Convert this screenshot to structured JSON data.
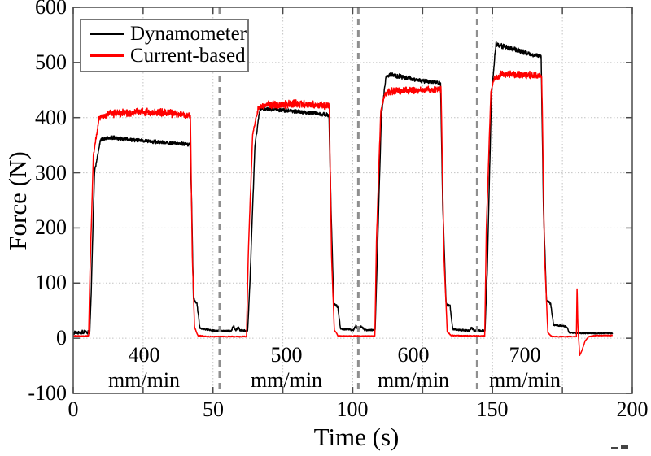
{
  "chart_data": {
    "type": "line",
    "title": "",
    "xlabel": "Time (s)",
    "ylabel": "Force (N)",
    "xlim": [
      0,
      200
    ],
    "ylim": [
      -100,
      600
    ],
    "xticks": [
      0,
      50,
      100,
      150,
      200
    ],
    "yticks": [
      -100,
      0,
      100,
      200,
      300,
      400,
      500,
      600
    ],
    "x_grid_step": 25,
    "grid": "dotted",
    "legend_position": "top-left",
    "separator_lines_x": [
      52.4,
      102,
      144.5
    ],
    "separator_style": {
      "color": "#8f8f8f",
      "dash": "8 6",
      "width": 3
    },
    "annotations": [
      {
        "line1": "400",
        "line2": "mm/min",
        "x": 25.3,
        "y": -38
      },
      {
        "line1": "500",
        "line2": "mm/min",
        "x": 76.3,
        "y": -38
      },
      {
        "line1": "600",
        "line2": "mm/min",
        "x": 121.7,
        "y": -38
      },
      {
        "line1": "700",
        "line2": "mm/min",
        "x": 161.6,
        "y": -38
      }
    ],
    "series": [
      {
        "name": "Dynamometer",
        "color": "#000000",
        "width": 1.5,
        "keypoints_t_value_noise": [
          [
            0,
            11,
            4
          ],
          [
            5.9,
            11,
            4
          ],
          [
            6.3,
            60,
            2
          ],
          [
            7.6,
            300,
            3
          ],
          [
            9.8,
            360,
            4
          ],
          [
            13,
            364,
            4
          ],
          [
            25,
            358,
            4
          ],
          [
            41.8,
            351,
            4
          ],
          [
            42.4,
            240,
            2
          ],
          [
            43.0,
            72,
            3
          ],
          [
            44.3,
            62,
            3
          ],
          [
            45.3,
            18,
            2
          ],
          [
            50,
            14,
            2
          ],
          [
            56.5,
            13,
            2
          ],
          [
            57.3,
            22,
            3
          ],
          [
            58.2,
            15,
            2
          ],
          [
            59,
            20,
            3
          ],
          [
            59.8,
            14,
            2
          ],
          [
            62.4,
            14,
            2
          ],
          [
            63.2,
            100,
            2
          ],
          [
            65,
            350,
            3
          ],
          [
            66.8,
            416,
            4
          ],
          [
            70,
            416,
            4
          ],
          [
            80,
            411,
            4
          ],
          [
            91.5,
            405,
            4
          ],
          [
            92.2,
            240,
            2
          ],
          [
            93.2,
            62,
            3
          ],
          [
            94.6,
            58,
            3
          ],
          [
            95.6,
            18,
            2
          ],
          [
            98,
            16,
            2
          ],
          [
            100.3,
            15,
            2
          ],
          [
            101,
            23,
            3
          ],
          [
            102,
            16,
            2
          ],
          [
            103.2,
            22,
            3
          ],
          [
            104.2,
            15,
            2
          ],
          [
            108,
            15,
            2
          ],
          [
            108.8,
            150,
            2
          ],
          [
            110.2,
            400,
            3
          ],
          [
            111.9,
            477,
            4
          ],
          [
            114,
            477,
            5
          ],
          [
            122,
            469,
            5
          ],
          [
            131.4,
            462,
            4
          ],
          [
            132.2,
            240,
            2
          ],
          [
            133.4,
            62,
            3
          ],
          [
            134.8,
            58,
            3
          ],
          [
            135.8,
            17,
            2
          ],
          [
            138,
            15,
            2
          ],
          [
            141.8,
            14,
            2
          ],
          [
            142.5,
            20,
            3
          ],
          [
            143.4,
            14,
            2
          ],
          [
            147.3,
            14,
            2
          ],
          [
            148.1,
            120,
            2
          ],
          [
            149.6,
            440,
            3
          ],
          [
            151.2,
            533,
            5
          ],
          [
            154,
            529,
            5
          ],
          [
            161,
            519,
            5
          ],
          [
            167.4,
            511,
            5
          ],
          [
            168.2,
            240,
            2
          ],
          [
            169.3,
            68,
            3
          ],
          [
            170.8,
            63,
            3
          ],
          [
            171.8,
            25,
            2
          ],
          [
            174,
            23,
            2
          ],
          [
            176.6,
            21,
            2
          ],
          [
            177.4,
            10,
            1.5
          ],
          [
            183,
            9,
            1.5
          ],
          [
            193,
            9,
            1.5
          ]
        ]
      },
      {
        "name": "Current-based",
        "color": "#ff0000",
        "width": 1.5,
        "keypoints_t_value_noise": [
          [
            0,
            4,
            1
          ],
          [
            5.5,
            4,
            1
          ],
          [
            6,
            120,
            2
          ],
          [
            7.2,
            330,
            3
          ],
          [
            9.2,
            398,
            6
          ],
          [
            13,
            407,
            8
          ],
          [
            22,
            410,
            8
          ],
          [
            33,
            409,
            8
          ],
          [
            41.9,
            403,
            7
          ],
          [
            42.6,
            150,
            2
          ],
          [
            43.4,
            20,
            1
          ],
          [
            44.6,
            5,
            1
          ],
          [
            48,
            3,
            1
          ],
          [
            62,
            3,
            1
          ],
          [
            62.6,
            150,
            2
          ],
          [
            64.2,
            370,
            3
          ],
          [
            66.2,
            418,
            6
          ],
          [
            70,
            423,
            8
          ],
          [
            80,
            425,
            8
          ],
          [
            91.6,
            421,
            7
          ],
          [
            92.4,
            150,
            2
          ],
          [
            93.4,
            15,
            1
          ],
          [
            94.8,
            4,
            1
          ],
          [
            107.9,
            4,
            1
          ],
          [
            108.5,
            180,
            2
          ],
          [
            110,
            410,
            3
          ],
          [
            111.5,
            444,
            6
          ],
          [
            114,
            448,
            7
          ],
          [
            123,
            450,
            7
          ],
          [
            131.6,
            451,
            6
          ],
          [
            132.6,
            150,
            2
          ],
          [
            133.8,
            12,
            1
          ],
          [
            135.2,
            5,
            1
          ],
          [
            147.2,
            4,
            1
          ],
          [
            147.8,
            200,
            2
          ],
          [
            149.4,
            445,
            3
          ],
          [
            150.7,
            473,
            6
          ],
          [
            153,
            477,
            8
          ],
          [
            160,
            479,
            8
          ],
          [
            167.6,
            475,
            7
          ],
          [
            168.6,
            150,
            2
          ],
          [
            169.8,
            10,
            1
          ],
          [
            171.2,
            3,
            1
          ],
          [
            176,
            3,
            1
          ],
          [
            180.0,
            3,
            0.6
          ],
          [
            180.25,
            93,
            0
          ],
          [
            180.55,
            20,
            0
          ],
          [
            181.2,
            -31,
            0
          ],
          [
            182.0,
            -22,
            0
          ],
          [
            183.2,
            -4,
            0.6
          ],
          [
            184.5,
            3,
            1
          ],
          [
            187,
            5,
            1
          ],
          [
            193,
            5,
            1
          ]
        ]
      }
    ],
    "legend": {
      "entries": [
        {
          "label": "Dynamometer",
          "color": "#000000"
        },
        {
          "label": "Current-based",
          "color": "#ff0000"
        }
      ]
    },
    "colors": {
      "axis": "#4a4a4a",
      "grid": "#c2c2c2",
      "separator": "#8f8f8f",
      "background": "#ffffff"
    }
  }
}
